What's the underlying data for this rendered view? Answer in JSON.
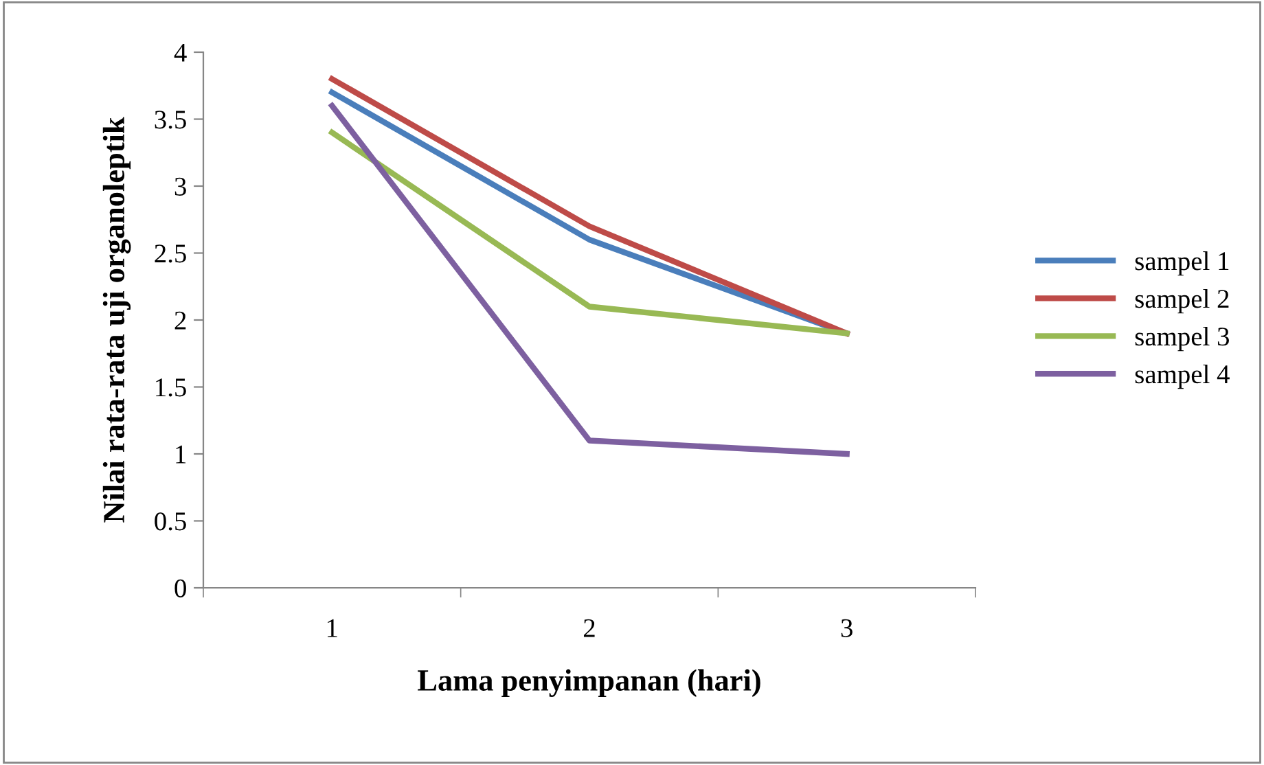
{
  "chart_data": {
    "type": "line",
    "xlabel": "Lama penyimpanan (hari)",
    "ylabel": "Nilai rata-rata uji organoleptik",
    "categories": [
      "1",
      "2",
      "3"
    ],
    "series": [
      {
        "name": "sampel 1",
        "color": "#4a7ebb",
        "values": [
          3.7,
          2.6,
          1.9
        ]
      },
      {
        "name": "sampel 2",
        "color": "#be4b48",
        "values": [
          3.8,
          2.7,
          1.9
        ]
      },
      {
        "name": "sampel 3",
        "color": "#98b954",
        "values": [
          3.4,
          2.1,
          1.9
        ]
      },
      {
        "name": "sampel 4",
        "color": "#7d60a0",
        "values": [
          3.6,
          1.1,
          1.0
        ]
      }
    ],
    "ylim": [
      0,
      4
    ],
    "yticks": [
      0,
      {
        "value": 0.5,
        "label": "0.5"
      },
      1,
      {
        "value": 1.5,
        "label": "1.5"
      },
      2,
      {
        "value": 2.5,
        "label": "2.5"
      },
      3,
      {
        "value": 3.5,
        "label": "3.5"
      },
      4
    ],
    "grid": false,
    "legend": "right",
    "marker": "none",
    "line_style": "solid"
  }
}
